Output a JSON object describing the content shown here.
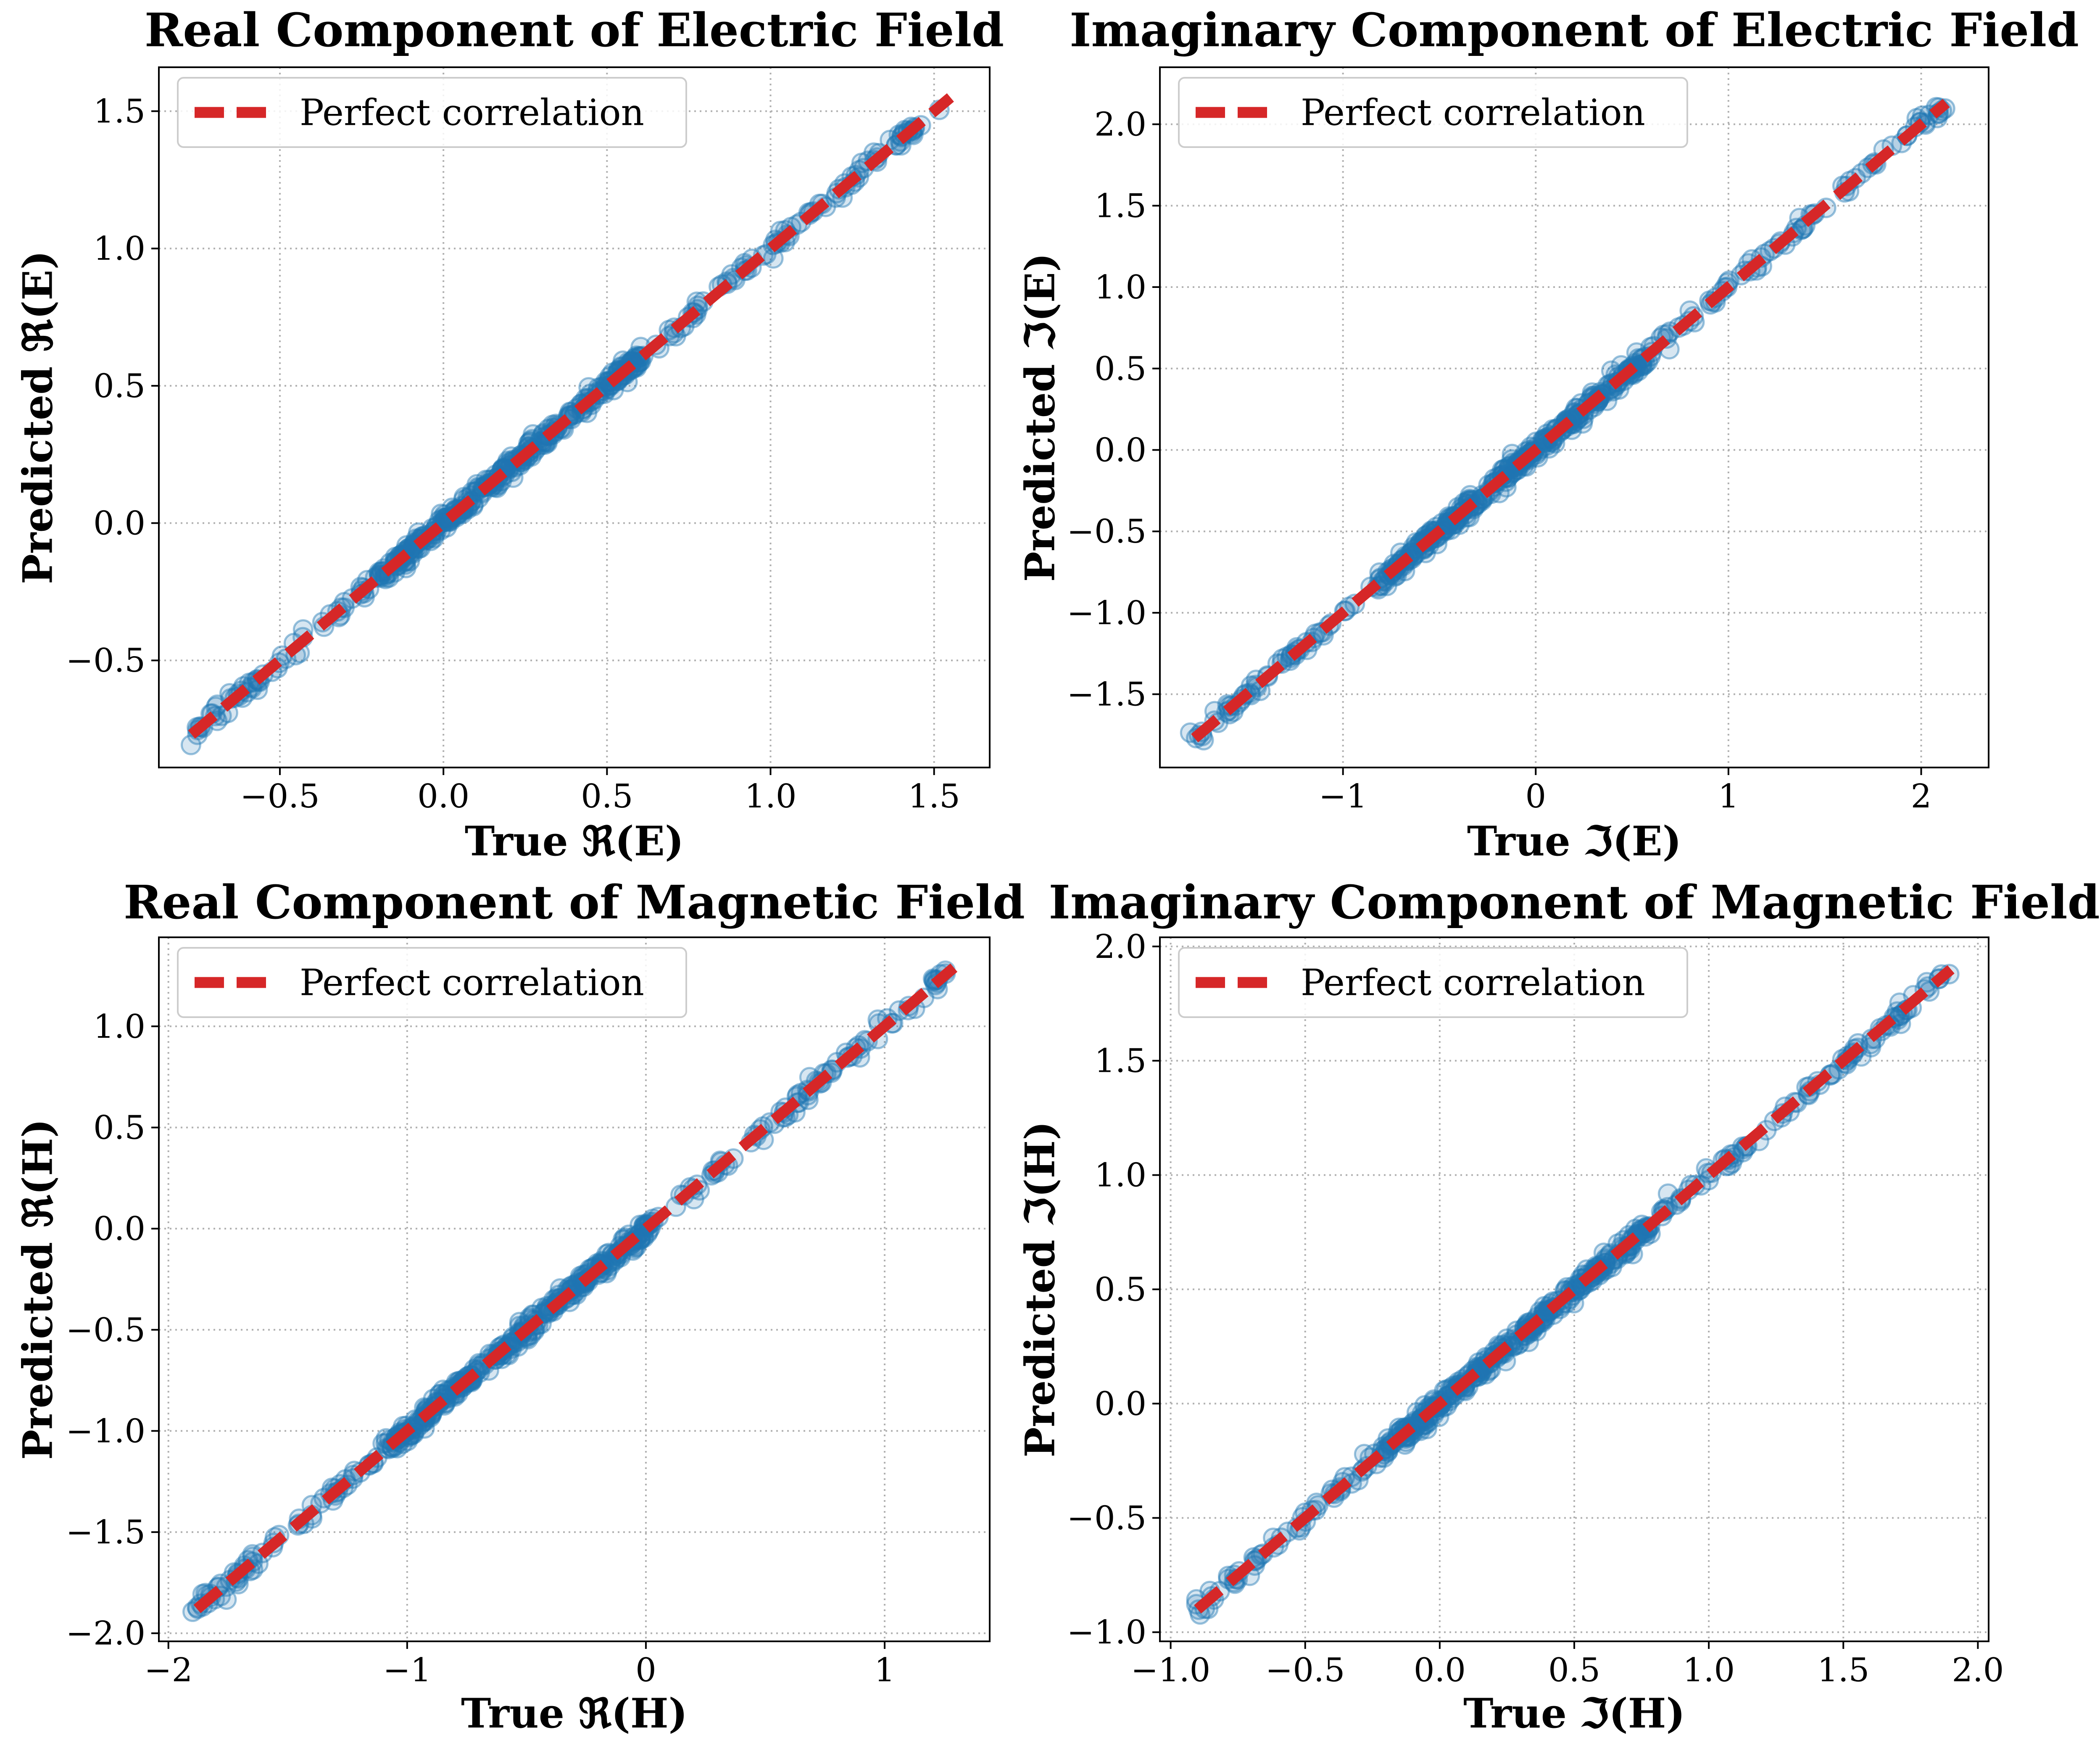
{
  "chart_data": [
    {
      "type": "scatter",
      "title": "Real Component of Electric Field",
      "xlabel": "True ℜ(E)",
      "ylabel": "Predicted ℜ(E)",
      "xlim": [
        -0.87,
        1.67
      ],
      "ylim": [
        -0.89,
        1.66
      ],
      "xticks": [
        -0.5,
        0.0,
        0.5,
        1.0,
        1.5
      ],
      "yticks": [
        -0.5,
        0.0,
        0.5,
        1.0,
        1.5
      ],
      "xtick_labels": [
        "−0.5",
        "0.0",
        "0.5",
        "1.0",
        "1.5"
      ],
      "ytick_labels": [
        "−0.5",
        "0.0",
        "0.5",
        "1.0",
        "1.5"
      ],
      "range": [
        -0.77,
        1.53
      ],
      "grid": true,
      "legend": {
        "location": "upper-left",
        "entries": [
          "Perfect correlation"
        ]
      },
      "series": [
        {
          "name": "Predicted vs True",
          "kind": "scatter",
          "color": "#1f77b4",
          "note": "points lie along y = x from -0.77 to 1.53"
        },
        {
          "name": "Perfect correlation",
          "kind": "line",
          "style": "dashed",
          "color": "#d62728",
          "x": [
            -0.77,
            1.55
          ],
          "y": [
            -0.77,
            1.55
          ]
        }
      ]
    },
    {
      "type": "scatter",
      "title": "Imaginary Component of Electric Field",
      "xlabel": "True ℑ(E)",
      "ylabel": "Predicted ℑ(E)",
      "xlim": [
        -1.95,
        2.35
      ],
      "ylim": [
        -1.95,
        2.35
      ],
      "xticks": [
        -1,
        0,
        1,
        2
      ],
      "yticks": [
        -1.5,
        -1.0,
        -0.5,
        0.0,
        0.5,
        1.0,
        1.5,
        2.0
      ],
      "xtick_labels": [
        "−1",
        "0",
        "1",
        "2"
      ],
      "ytick_labels": [
        "−1.5",
        "−1.0",
        "−0.5",
        "0.0",
        "0.5",
        "1.0",
        "1.5",
        "2.0"
      ],
      "range": [
        -1.77,
        2.12
      ],
      "grid": true,
      "legend": {
        "location": "upper-left",
        "entries": [
          "Perfect correlation"
        ]
      },
      "series": [
        {
          "name": "Predicted vs True",
          "kind": "scatter",
          "color": "#1f77b4",
          "note": "points lie along y = x from -1.77 to 2.12"
        },
        {
          "name": "Perfect correlation",
          "kind": "line",
          "style": "dashed",
          "color": "#d62728",
          "x": [
            -1.77,
            2.13
          ],
          "y": [
            -1.77,
            2.13
          ]
        }
      ]
    },
    {
      "type": "scatter",
      "title": "Real Component of Magnetic Field",
      "xlabel": "True ℜ(H)",
      "ylabel": "Predicted ℜ(H)",
      "xlim": [
        -2.04,
        1.44
      ],
      "ylim": [
        -2.04,
        1.44
      ],
      "xticks": [
        -2,
        -1,
        0,
        1
      ],
      "yticks": [
        -2.0,
        -1.5,
        -1.0,
        -0.5,
        0.0,
        0.5,
        1.0
      ],
      "xtick_labels": [
        "−2",
        "−1",
        "0",
        "1"
      ],
      "ytick_labels": [
        "−2.0",
        "−1.5",
        "−1.0",
        "−0.5",
        "0.0",
        "0.5",
        "1.0"
      ],
      "range": [
        -1.88,
        1.28
      ],
      "grid": true,
      "legend": {
        "location": "upper-left",
        "entries": [
          "Perfect correlation"
        ]
      },
      "series": [
        {
          "name": "Predicted vs True",
          "kind": "scatter",
          "color": "#1f77b4",
          "note": "points lie along y = x from -1.88 to 1.28"
        },
        {
          "name": "Perfect correlation",
          "kind": "line",
          "style": "dashed",
          "color": "#d62728",
          "x": [
            -1.88,
            1.29
          ],
          "y": [
            -1.88,
            1.29
          ]
        }
      ]
    },
    {
      "type": "scatter",
      "title": "Imaginary Component of Magnetic Field",
      "xlabel": "True ℑ(H)",
      "ylabel": "Predicted ℑ(H)",
      "xlim": [
        -1.04,
        2.04
      ],
      "ylim": [
        -1.04,
        2.04
      ],
      "xticks": [
        -1.0,
        -0.5,
        0.0,
        0.5,
        1.0,
        1.5,
        2.0
      ],
      "yticks": [
        -1.0,
        -0.5,
        0.0,
        0.5,
        1.0,
        1.5,
        2.0
      ],
      "xtick_labels": [
        "−1.0",
        "−0.5",
        "0.0",
        "0.5",
        "1.0",
        "1.5",
        "2.0"
      ],
      "ytick_labels": [
        "−1.0",
        "−0.5",
        "0.0",
        "0.5",
        "1.0",
        "1.5",
        "2.0"
      ],
      "range": [
        -0.9,
        1.89
      ],
      "grid": true,
      "legend": {
        "location": "upper-left",
        "entries": [
          "Perfect correlation"
        ]
      },
      "series": [
        {
          "name": "Predicted vs True",
          "kind": "scatter",
          "color": "#1f77b4",
          "note": "points lie along y = x from -0.90 to 1.89"
        },
        {
          "name": "Perfect correlation",
          "kind": "line",
          "style": "dashed",
          "color": "#d62728",
          "x": [
            -0.9,
            1.9
          ],
          "y": [
            -0.9,
            1.9
          ]
        }
      ]
    }
  ],
  "colors": {
    "points": "#1f77b4",
    "perfect_line": "#d62728",
    "grid": "#b0b0b0"
  }
}
